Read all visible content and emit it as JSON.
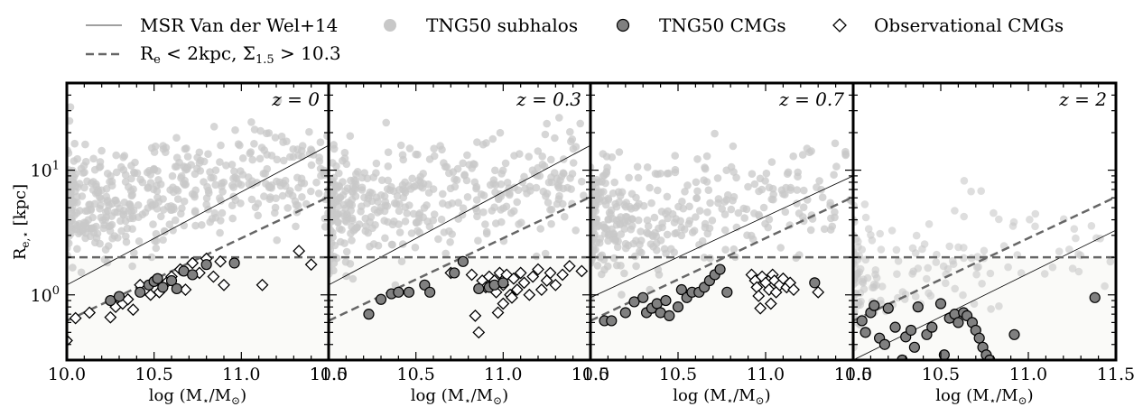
{
  "chart_data": {
    "type": "scatter",
    "legend": {
      "placement": "top",
      "entries": [
        {
          "label": "MSR Van der Wel+14",
          "style": "thin-line"
        },
        {
          "label": "R",
          "label_sub": "e",
          "label_rest": " < 2kpc, Σ",
          "label_sub2": "1.5",
          "label_end": " > 10.3",
          "style": "dashed-line"
        },
        {
          "label": "TNG50 subhalos",
          "style": "light-gray-dot"
        },
        {
          "label": "TNG50 CMGs",
          "style": "gray-dot"
        },
        {
          "label": "Observational CMGs",
          "style": "open-diamond"
        }
      ]
    },
    "ylabel": "R",
    "ylabel_sub": "e,⋆",
    "ylabel_unit": " [kpc]",
    "xlabel": "log (M",
    "xlabel_sub1": "⋆",
    "xlabel_mid": "/M",
    "xlabel_sub2": "⊙",
    "xlabel_end": ")",
    "xlim": [
      10.0,
      11.5
    ],
    "ylim": [
      0.3,
      50
    ],
    "yscale": "log",
    "yticks": [
      {
        "v": 1,
        "label": "10",
        "exp": "0"
      },
      {
        "v": 10,
        "label": "10",
        "exp": "1"
      }
    ],
    "compact_threshold_kpc": 2,
    "msr_line": {
      "x": [
        10.0,
        11.5
      ],
      "y": [
        1.2,
        15.8
      ]
    },
    "compact_line": {
      "x": [
        10.0,
        11.5
      ],
      "y": [
        0.62,
        6.1
      ]
    },
    "colors": {
      "subhalo": "#c8c8c8",
      "cmg": "#808080",
      "lines": "#666666",
      "shade": "#fafaf8"
    },
    "panels": [
      {
        "redshift": "z = 0",
        "xticks": [
          "10.0",
          "10.5",
          "11.0",
          "11.5"
        ],
        "msr_line": {
          "x": [
            10.0,
            11.5
          ],
          "y": [
            1.2,
            15.8
          ]
        },
        "compact_line": {
          "x": [
            10.0,
            11.5
          ],
          "y": [
            0.62,
            6.1
          ]
        },
        "subhalo_count": 480,
        "subhalo_seed": 11,
        "cmgs": [
          {
            "x": 10.25,
            "y": 0.9
          },
          {
            "x": 10.3,
            "y": 0.97
          },
          {
            "x": 10.42,
            "y": 1.05
          },
          {
            "x": 10.47,
            "y": 1.2
          },
          {
            "x": 10.5,
            "y": 1.28
          },
          {
            "x": 10.52,
            "y": 1.35
          },
          {
            "x": 10.55,
            "y": 1.15
          },
          {
            "x": 10.6,
            "y": 1.3
          },
          {
            "x": 10.63,
            "y": 1.12
          },
          {
            "x": 10.67,
            "y": 1.55
          },
          {
            "x": 10.72,
            "y": 1.45
          },
          {
            "x": 10.8,
            "y": 1.75
          },
          {
            "x": 10.96,
            "y": 1.8
          }
        ],
        "obs": [
          {
            "x": 10.0,
            "y": 0.43
          },
          {
            "x": 10.05,
            "y": 0.65
          },
          {
            "x": 10.13,
            "y": 0.72
          },
          {
            "x": 10.25,
            "y": 0.66
          },
          {
            "x": 10.28,
            "y": 0.8
          },
          {
            "x": 10.32,
            "y": 0.85
          },
          {
            "x": 10.35,
            "y": 0.92
          },
          {
            "x": 10.38,
            "y": 0.76
          },
          {
            "x": 10.42,
            "y": 1.2
          },
          {
            "x": 10.45,
            "y": 1.1
          },
          {
            "x": 10.48,
            "y": 1.0
          },
          {
            "x": 10.5,
            "y": 1.3
          },
          {
            "x": 10.53,
            "y": 1.05
          },
          {
            "x": 10.57,
            "y": 1.25
          },
          {
            "x": 10.6,
            "y": 1.4
          },
          {
            "x": 10.65,
            "y": 1.6
          },
          {
            "x": 10.68,
            "y": 1.1
          },
          {
            "x": 10.72,
            "y": 1.8
          },
          {
            "x": 10.76,
            "y": 1.5
          },
          {
            "x": 10.8,
            "y": 1.95
          },
          {
            "x": 10.84,
            "y": 1.4
          },
          {
            "x": 10.88,
            "y": 1.85
          },
          {
            "x": 10.9,
            "y": 1.2
          },
          {
            "x": 11.12,
            "y": 1.2
          },
          {
            "x": 11.33,
            "y": 2.25
          },
          {
            "x": 11.4,
            "y": 1.75
          }
        ]
      },
      {
        "redshift": "z = 0.3",
        "xticks": [
          "10.0",
          "10.5",
          "11.0",
          "11.5"
        ],
        "msr_line": {
          "x": [
            10.0,
            11.5
          ],
          "y": [
            1.2,
            15.8
          ]
        },
        "compact_line": {
          "x": [
            10.0,
            11.5
          ],
          "y": [
            0.62,
            6.1
          ]
        },
        "subhalo_count": 420,
        "subhalo_seed": 29,
        "cmgs": [
          {
            "x": 10.23,
            "y": 0.7
          },
          {
            "x": 10.3,
            "y": 0.92
          },
          {
            "x": 10.36,
            "y": 1.02
          },
          {
            "x": 10.4,
            "y": 1.05
          },
          {
            "x": 10.46,
            "y": 1.05
          },
          {
            "x": 10.55,
            "y": 1.2
          },
          {
            "x": 10.58,
            "y": 1.05
          },
          {
            "x": 10.72,
            "y": 1.5
          },
          {
            "x": 10.77,
            "y": 1.85
          },
          {
            "x": 10.86,
            "y": 1.12
          },
          {
            "x": 10.92,
            "y": 1.15
          },
          {
            "x": 10.95,
            "y": 1.2
          },
          {
            "x": 11.0,
            "y": 1.25
          }
        ],
        "obs": [
          {
            "x": 10.7,
            "y": 1.5
          },
          {
            "x": 10.82,
            "y": 1.45
          },
          {
            "x": 10.84,
            "y": 0.68
          },
          {
            "x": 10.86,
            "y": 0.5
          },
          {
            "x": 10.88,
            "y": 1.3
          },
          {
            "x": 10.9,
            "y": 1.15
          },
          {
            "x": 10.92,
            "y": 1.4
          },
          {
            "x": 10.95,
            "y": 1.3
          },
          {
            "x": 10.96,
            "y": 1.05
          },
          {
            "x": 10.98,
            "y": 1.5
          },
          {
            "x": 11.0,
            "y": 1.2
          },
          {
            "x": 11.02,
            "y": 1.45
          },
          {
            "x": 11.04,
            "y": 1.0
          },
          {
            "x": 11.06,
            "y": 1.35
          },
          {
            "x": 11.08,
            "y": 1.1
          },
          {
            "x": 11.1,
            "y": 1.5
          },
          {
            "x": 11.12,
            "y": 1.25
          },
          {
            "x": 11.15,
            "y": 1.0
          },
          {
            "x": 11.17,
            "y": 1.4
          },
          {
            "x": 11.2,
            "y": 1.6
          },
          {
            "x": 11.22,
            "y": 1.1
          },
          {
            "x": 11.25,
            "y": 1.3
          },
          {
            "x": 11.27,
            "y": 1.5
          },
          {
            "x": 11.3,
            "y": 1.2
          },
          {
            "x": 11.34,
            "y": 1.45
          },
          {
            "x": 11.38,
            "y": 1.7
          },
          {
            "x": 11.45,
            "y": 1.55
          },
          {
            "x": 11.0,
            "y": 0.85
          },
          {
            "x": 10.97,
            "y": 0.72
          },
          {
            "x": 11.05,
            "y": 0.95
          }
        ]
      },
      {
        "redshift": "z = 0.7",
        "xticks": [
          "10.0",
          "10.5",
          "11.0",
          "11.5"
        ],
        "msr_line": {
          "x": [
            10.0,
            11.5
          ],
          "y": [
            0.95,
            9.0
          ]
        },
        "compact_line": {
          "x": [
            10.0,
            11.5
          ],
          "y": [
            0.62,
            6.1
          ]
        },
        "subhalo_count": 380,
        "subhalo_seed": 47,
        "cmgs": [
          {
            "x": 10.08,
            "y": 0.62
          },
          {
            "x": 10.12,
            "y": 0.62
          },
          {
            "x": 10.2,
            "y": 0.72
          },
          {
            "x": 10.25,
            "y": 0.88
          },
          {
            "x": 10.3,
            "y": 0.95
          },
          {
            "x": 10.32,
            "y": 0.72
          },
          {
            "x": 10.35,
            "y": 0.78
          },
          {
            "x": 10.38,
            "y": 0.85
          },
          {
            "x": 10.4,
            "y": 0.72
          },
          {
            "x": 10.43,
            "y": 0.9
          },
          {
            "x": 10.45,
            "y": 0.68
          },
          {
            "x": 10.5,
            "y": 0.8
          },
          {
            "x": 10.52,
            "y": 1.1
          },
          {
            "x": 10.55,
            "y": 0.95
          },
          {
            "x": 10.58,
            "y": 1.05
          },
          {
            "x": 10.62,
            "y": 1.05
          },
          {
            "x": 10.65,
            "y": 1.15
          },
          {
            "x": 10.68,
            "y": 1.3
          },
          {
            "x": 10.71,
            "y": 1.45
          },
          {
            "x": 10.74,
            "y": 1.6
          },
          {
            "x": 10.78,
            "y": 1.05
          },
          {
            "x": 11.28,
            "y": 1.25
          }
        ],
        "obs": [
          {
            "x": 10.92,
            "y": 1.45
          },
          {
            "x": 10.94,
            "y": 1.3
          },
          {
            "x": 10.95,
            "y": 1.15
          },
          {
            "x": 10.96,
            "y": 0.98
          },
          {
            "x": 10.97,
            "y": 0.78
          },
          {
            "x": 10.98,
            "y": 1.4
          },
          {
            "x": 11.0,
            "y": 1.25
          },
          {
            "x": 11.02,
            "y": 1.1
          },
          {
            "x": 11.03,
            "y": 0.85
          },
          {
            "x": 11.04,
            "y": 1.45
          },
          {
            "x": 11.05,
            "y": 1.3
          },
          {
            "x": 11.06,
            "y": 1.05
          },
          {
            "x": 11.08,
            "y": 1.2
          },
          {
            "x": 11.1,
            "y": 1.35
          },
          {
            "x": 11.12,
            "y": 1.15
          },
          {
            "x": 11.14,
            "y": 1.25
          },
          {
            "x": 11.16,
            "y": 1.1
          },
          {
            "x": 11.3,
            "y": 1.05
          }
        ]
      },
      {
        "redshift": "z = 2",
        "xticks": [
          "10.0",
          "10.5",
          "11.0",
          "11.5"
        ],
        "msr_line": {
          "x": [
            10.0,
            11.5
          ],
          "y": [
            0.3,
            3.3
          ]
        },
        "compact_line": {
          "x": [
            10.0,
            11.5
          ],
          "y": [
            0.62,
            6.1
          ]
        },
        "subhalo_count": 160,
        "subhalo_seed": 83,
        "cmgs": [
          {
            "x": 10.05,
            "y": 0.62
          },
          {
            "x": 10.07,
            "y": 0.5
          },
          {
            "x": 10.1,
            "y": 0.72
          },
          {
            "x": 10.12,
            "y": 0.82
          },
          {
            "x": 10.15,
            "y": 0.45
          },
          {
            "x": 10.18,
            "y": 0.4
          },
          {
            "x": 10.2,
            "y": 0.78
          },
          {
            "x": 10.24,
            "y": 0.55
          },
          {
            "x": 10.28,
            "y": 0.3
          },
          {
            "x": 10.3,
            "y": 0.46
          },
          {
            "x": 10.33,
            "y": 0.52
          },
          {
            "x": 10.35,
            "y": 0.38
          },
          {
            "x": 10.37,
            "y": 0.8
          },
          {
            "x": 10.42,
            "y": 0.48
          },
          {
            "x": 10.45,
            "y": 0.55
          },
          {
            "x": 10.5,
            "y": 0.85
          },
          {
            "x": 10.52,
            "y": 0.33
          },
          {
            "x": 10.55,
            "y": 0.65
          },
          {
            "x": 10.58,
            "y": 0.7
          },
          {
            "x": 10.6,
            "y": 0.6
          },
          {
            "x": 10.63,
            "y": 0.72
          },
          {
            "x": 10.65,
            "y": 0.68
          },
          {
            "x": 10.68,
            "y": 0.6
          },
          {
            "x": 10.7,
            "y": 0.52
          },
          {
            "x": 10.72,
            "y": 0.45
          },
          {
            "x": 10.74,
            "y": 0.38
          },
          {
            "x": 10.76,
            "y": 0.33
          },
          {
            "x": 10.78,
            "y": 0.3
          },
          {
            "x": 10.92,
            "y": 0.48
          },
          {
            "x": 11.38,
            "y": 0.95
          }
        ],
        "obs": []
      }
    ]
  }
}
